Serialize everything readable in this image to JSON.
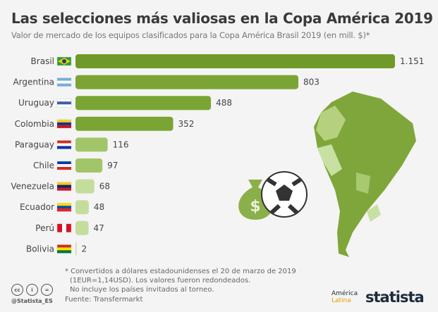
{
  "title": "Las selecciones más valiosas en la Copa América 2019",
  "subtitle": "Valor de mercado de los equipos clasificados para la Copa América Brasil 2019 (en mill. $)*",
  "chart_data": {
    "type": "bar",
    "orientation": "horizontal",
    "title": "Las selecciones más valiosas en la Copa América 2019",
    "categories": [
      "Brasil",
      "Argentina",
      "Uruguay",
      "Colombia",
      "Paraguay",
      "Chile",
      "Venezuela",
      "Ecuador",
      "Perú",
      "Bolivia"
    ],
    "values": [
      1151,
      803,
      488,
      352,
      116,
      97,
      68,
      48,
      47,
      2
    ],
    "value_labels": [
      "1.151",
      "803",
      "488",
      "352",
      "116",
      "97",
      "68",
      "48",
      "47",
      "2"
    ],
    "unit": "mill. $",
    "grid": false,
    "colors": {
      "dark": "#6f9a2a",
      "light": "#c4dd9c"
    }
  },
  "notes": [
    "* Convertidos a dólares estadounidenses el 20 de marzo de 2019",
    "(1EUR=1,14USD). Los valores fueron redondeados.",
    "No incluye los países invitados al torneo."
  ],
  "source": "Fuente: Transfermarkt",
  "handle": "@Statista_ES",
  "license_icons": [
    "cc-icon",
    "by-icon",
    "nd-icon"
  ],
  "brand": "statista",
  "partner": {
    "line1": "América",
    "line2": "Latina"
  }
}
